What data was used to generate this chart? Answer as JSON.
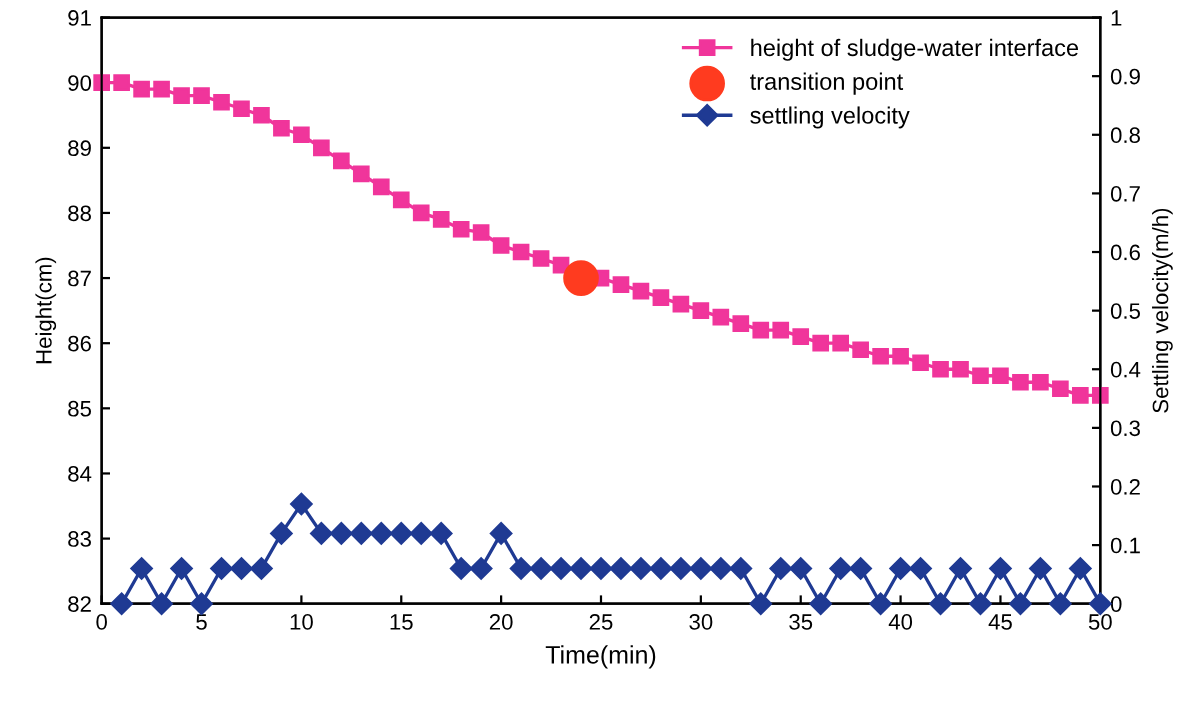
{
  "chart_data": {
    "type": "line",
    "xlabel": "Time(min)",
    "ylabel": "Height(cm)",
    "y2label": "Settling velocity(m/h)",
    "xlim": [
      0,
      50
    ],
    "xticks": [
      0,
      5,
      10,
      15,
      20,
      25,
      30,
      35,
      40,
      45,
      50
    ],
    "ylim": [
      82,
      91
    ],
    "yticks": [
      82,
      83,
      84,
      85,
      86,
      87,
      88,
      89,
      90,
      91
    ],
    "y2lim": [
      0,
      1
    ],
    "y2ticks": [
      0,
      0.1,
      0.2,
      0.3,
      0.4,
      0.5,
      0.6,
      0.7,
      0.8,
      0.9,
      1
    ],
    "grid": false,
    "legend": "top right",
    "series": [
      {
        "name": "height of sludge-water interface",
        "marker": "square",
        "color": "#f0359b",
        "x": [
          0,
          1,
          2,
          3,
          4,
          5,
          6,
          7,
          8,
          9,
          10,
          11,
          12,
          13,
          14,
          15,
          16,
          17,
          18,
          19,
          20,
          21,
          22,
          23,
          24,
          25,
          26,
          27,
          28,
          29,
          30,
          31,
          32,
          33,
          34,
          35,
          36,
          37,
          38,
          39,
          40,
          41,
          42,
          43,
          44,
          45,
          46,
          47,
          48,
          49,
          50
        ],
        "values": [
          90.0,
          90.0,
          89.9,
          89.9,
          89.8,
          89.8,
          89.7,
          89.6,
          89.5,
          89.3,
          89.2,
          89.0,
          88.8,
          88.6,
          88.4,
          88.2,
          88.0,
          87.9,
          87.75,
          87.7,
          87.5,
          87.4,
          87.3,
          87.2,
          null,
          87.0,
          86.9,
          86.8,
          86.7,
          86.6,
          86.5,
          86.4,
          86.3,
          86.2,
          86.2,
          86.1,
          86.0,
          86.0,
          85.9,
          85.8,
          85.8,
          85.7,
          85.6,
          85.6,
          85.5,
          85.5,
          85.4,
          85.4,
          85.3,
          85.2,
          85.2
        ]
      },
      {
        "name": "transition point",
        "type": "scatter",
        "marker": "circle",
        "color": "#ff3b1f",
        "x": [
          24
        ],
        "values": [
          87.0
        ]
      },
      {
        "name": "settling velocity",
        "marker": "diamond",
        "color": "#1f3a93",
        "axis": "y2",
        "x": [
          1,
          2,
          3,
          4,
          5,
          6,
          7,
          8,
          9,
          10,
          11,
          12,
          13,
          14,
          15,
          16,
          17,
          18,
          19,
          20,
          21,
          22,
          23,
          24,
          25,
          26,
          27,
          28,
          29,
          30,
          31,
          32,
          33,
          34,
          35,
          36,
          37,
          38,
          39,
          40,
          41,
          42,
          43,
          44,
          45,
          46,
          47,
          48,
          49,
          50
        ],
        "values": [
          0,
          0.06,
          0,
          0.06,
          0,
          0.06,
          0.06,
          0.06,
          0.12,
          0.17,
          0.12,
          0.12,
          0.12,
          0.12,
          0.12,
          0.12,
          0.12,
          0.06,
          0.06,
          0.12,
          0.06,
          0.06,
          0.06,
          0.06,
          0.06,
          0.06,
          0.06,
          0.06,
          0.06,
          0.06,
          0.06,
          0.06,
          0,
          0.06,
          0.06,
          0,
          0.06,
          0.06,
          0,
          0.06,
          0.06,
          0,
          0.06,
          0,
          0.06,
          0,
          0.06,
          0,
          0.06,
          0
        ]
      }
    ]
  }
}
